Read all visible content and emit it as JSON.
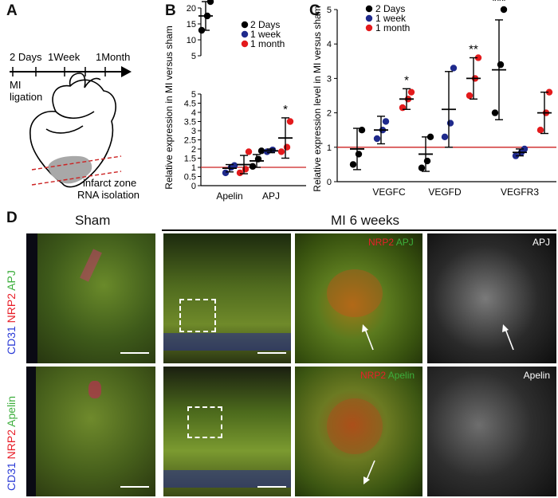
{
  "panels": {
    "A": "A",
    "B": "B",
    "C": "C",
    "D": "D"
  },
  "panelA": {
    "timeline": [
      "2 Days",
      "1Week",
      "1Month"
    ],
    "mi_label_1": "MI",
    "mi_label_2": "ligation",
    "zone_label_1": "infarct zone",
    "zone_label_2": "RNA isolation"
  },
  "legend": {
    "items": [
      "2 Days",
      "1 week",
      "1 month"
    ],
    "colors": [
      "#000000",
      "#1f2a8c",
      "#e31a1c"
    ]
  },
  "colors": {
    "reference_line": "#cc2222",
    "black": "#000000",
    "blue": "#1f2a8c",
    "red": "#e31a1c"
  },
  "chart_data": [
    {
      "type": "scatter",
      "panel": "B",
      "ylabel": "Relative expression in MI versus sham",
      "categories": [
        "Apelin",
        "APJ"
      ],
      "groups": [
        "2 Days",
        "1 week",
        "1 month"
      ],
      "broken_axis": {
        "lower_ylim": [
          0,
          5
        ],
        "upper_ylim": [
          5,
          20
        ],
        "upper_ticks": [
          5,
          10,
          15,
          20
        ],
        "lower_ticks": [
          0,
          0.5,
          1,
          1.5,
          2,
          2.5,
          3,
          3.5,
          4,
          4.5,
          5
        ]
      },
      "reference_line": 1,
      "series": [
        {
          "category": "Apelin",
          "group": "2 Days",
          "mean": null,
          "points": [],
          "sig": ""
        },
        {
          "category": "Apelin",
          "group": "1 week",
          "mean": 0.95,
          "sd": 0.2,
          "points": [
            0.7,
            1.0,
            1.1
          ],
          "sig": ""
        },
        {
          "category": "Apelin",
          "group": "1 month",
          "mean": 1.15,
          "sd": 0.5,
          "points": [
            0.7,
            0.9,
            1.85
          ],
          "sig": ""
        },
        {
          "category": "APJ",
          "group": "2 Days",
          "mean": 1.35,
          "sd": 0.35,
          "points": [
            1.05,
            1.45,
            1.9
          ],
          "sig": ""
        },
        {
          "category": "APJ",
          "group": "1 week",
          "mean": 1.9,
          "sd": 0.1,
          "points": [
            1.85,
            1.95
          ],
          "sig": ""
        },
        {
          "category": "APJ",
          "group": "1 month",
          "mean": 2.6,
          "sd": 1.1,
          "points": [
            1.85,
            2.1,
            3.5
          ],
          "sig": "*"
        },
        {
          "category": "upper",
          "group": "2 Days",
          "mean": 17.5,
          "sd": 4.5,
          "points": [
            13,
            17.5,
            22
          ],
          "sig": "**"
        }
      ]
    },
    {
      "type": "scatter",
      "panel": "C",
      "ylabel": "Relative expression level in MI versus sham",
      "categories": [
        "VEGFC",
        "VEGFD",
        "VEGFR3"
      ],
      "groups": [
        "2 Days",
        "1 week",
        "1 month"
      ],
      "ylim": [
        0,
        5
      ],
      "yticks": [
        0,
        1,
        2,
        3,
        4,
        5
      ],
      "reference_line": 1,
      "series": [
        {
          "category": "VEGFC",
          "group": "2 Days",
          "mean": 0.95,
          "sd": 0.6,
          "points": [
            0.5,
            0.8,
            1.5
          ],
          "sig": ""
        },
        {
          "category": "VEGFC",
          "group": "1 week",
          "mean": 1.5,
          "sd": 0.4,
          "points": [
            1.25,
            1.5,
            1.75
          ],
          "sig": ""
        },
        {
          "category": "VEGFC",
          "group": "1 month",
          "mean": 2.4,
          "sd": 0.3,
          "points": [
            2.15,
            2.4,
            2.6
          ],
          "sig": "*"
        },
        {
          "category": "VEGFD",
          "group": "2 Days",
          "mean": 0.8,
          "sd": 0.5,
          "points": [
            0.4,
            0.6,
            1.3
          ],
          "sig": ""
        },
        {
          "category": "VEGFD",
          "group": "1 week",
          "mean": 2.1,
          "sd": 1.1,
          "points": [
            1.3,
            1.7,
            3.3
          ],
          "sig": ""
        },
        {
          "category": "VEGFD",
          "group": "1 month",
          "mean": 3.0,
          "sd": 0.6,
          "points": [
            2.5,
            3.0,
            3.6
          ],
          "sig": "**"
        },
        {
          "category": "VEGFR3",
          "group": "2 Days",
          "mean": 3.25,
          "sd": 1.45,
          "points": [
            2.0,
            3.4,
            5.0
          ],
          "sig": "***"
        },
        {
          "category": "VEGFR3",
          "group": "1 week",
          "mean": 0.85,
          "sd": 0.1,
          "points": [
            0.75,
            0.85,
            0.95
          ],
          "sig": ""
        },
        {
          "category": "VEGFR3",
          "group": "1 month",
          "mean": 2.0,
          "sd": 0.6,
          "points": [
            1.5,
            2.0,
            2.6
          ],
          "sig": ""
        }
      ]
    }
  ],
  "panelD": {
    "sham_title": "Sham",
    "mi_title": "MI 6 weeks",
    "row1_ylabel": [
      "CD31 ",
      "NRP2 ",
      "APJ"
    ],
    "row2_ylabel": [
      "CD31 ",
      "NRP2 ",
      "Apelin"
    ],
    "row1_zoom_label": [
      "NRP2 ",
      "APJ"
    ],
    "row1_gray_label": "APJ",
    "row2_zoom_label": [
      "NRP2 ",
      "Apelin"
    ],
    "row2_gray_label": "Apelin",
    "label_colors": {
      "cd31": "#2b3bd6",
      "nrp2": "#e8202a",
      "green": "#3cae3c"
    }
  }
}
